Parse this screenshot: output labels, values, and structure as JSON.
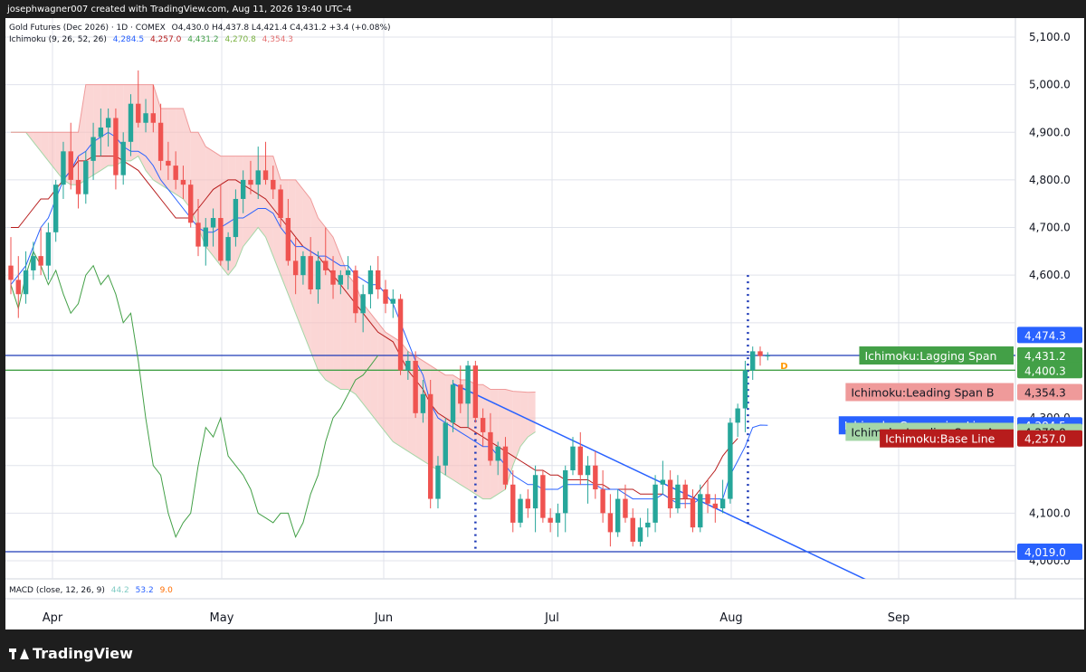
{
  "header": {
    "created_by": "josephwagner007 created with TradingView.com, Aug 11, 2026 19:40 UTC-4"
  },
  "legend": {
    "symbol": "Gold Futures (Dec 2026) · 1D · COMEX",
    "ohlc": "O4,430.0  H4,437.8  L4,421.4  C4,431.2  +3.4 (+0.08%)",
    "ichimoku_name": "Ichimoku (9, 26, 52, 26)",
    "ichimoku_values": [
      "4,284.5",
      "4,257.0",
      "4,431.2",
      "4,270.8",
      "4,354.3"
    ],
    "ichimoku_colors": [
      "#2962ff",
      "#b71c1c",
      "#43a047",
      "#a5d6a7",
      "#ef9a9a"
    ],
    "macd_name": "MACD (close, 12, 26, 9)",
    "macd_values": [
      "44.2",
      "53.2",
      "9.0"
    ],
    "macd_colors": [
      "#80cbc4",
      "#2962ff",
      "#ff6d00"
    ]
  },
  "price_axis": {
    "ticks": [
      "5,100.0",
      "5,000.0",
      "4,900.0",
      "4,800.0",
      "4,700.0",
      "4,600.0",
      "4,300.0",
      "4,100.0",
      "4,000.0"
    ]
  },
  "time_axis": {
    "ticks": [
      "Apr",
      "May",
      "Jun",
      "Jul",
      "Aug",
      "Sep"
    ]
  },
  "price_labels": [
    {
      "text": "4,474.3",
      "value": 4474.3,
      "bg": "#2962ff",
      "fg": "#ffffff"
    },
    {
      "text": "4,431.2",
      "value": 4431.2,
      "bg": "#43a047",
      "fg": "#ffffff",
      "name": "Ichimoku:Lagging Span",
      "namebg": "#43a047",
      "namefg": "#ffffff",
      "offset": -10
    },
    {
      "text": "4,431.2",
      "value": 4431.2,
      "bg": "#43a047",
      "fg": "#ffffff",
      "offset": 10
    },
    {
      "text": "4,400.3",
      "value": 4400.3,
      "bg": "#43a047",
      "fg": "#ffffff"
    },
    {
      "text": "4,354.3",
      "value": 4354.3,
      "bg": "#ef9a9a",
      "fg": "#131722",
      "name": "Ichimoku:Leading Span B",
      "namebg": "#ef9a9a",
      "namefg": "#131722"
    },
    {
      "text": "4,284.5",
      "value": 4284.5,
      "bg": "#2962ff",
      "fg": "#ffffff",
      "name": "Ichimoku:Conversion Line",
      "namebg": "#2962ff",
      "namefg": "#ffffff"
    },
    {
      "text": "4,270.8",
      "value": 4270.8,
      "bg": "#a5d6a7",
      "fg": "#131722",
      "name": "Ichimoku:Leading Span A",
      "namebg": "#a5d6a7",
      "namefg": "#131722",
      "offset": 6
    },
    {
      "text": "4,257.0",
      "value": 4257.0,
      "bg": "#b71c1c",
      "fg": "#ffffff",
      "name": "Ichimoku:Base Line",
      "namebg": "#b71c1c",
      "namefg": "#ffffff",
      "offset": 10
    },
    {
      "text": "4,019.0",
      "value": 4019.0,
      "bg": "#2962ff",
      "fg": "#ffffff"
    }
  ],
  "marker_label": "D",
  "footer": {
    "brand": "TradingView"
  },
  "chart_data": {
    "type": "candlestick",
    "title": "Gold Futures (Dec 2026) · 1D · COMEX",
    "ylim": [
      3980,
      5130
    ],
    "colors": {
      "up": "#26a69a",
      "down": "#ef5350",
      "kumo_bear": "#f8bbb9",
      "kumo_bull": "#c8e6c9"
    },
    "horizontal_lines": [
      {
        "value": 4431.2,
        "color": "#1e3ab8"
      },
      {
        "value": 4400.3,
        "color": "#43a047"
      },
      {
        "value": 4019.0,
        "color": "#1e3ab8"
      }
    ],
    "candles": [
      [
        4620,
        4680,
        4560,
        4590
      ],
      [
        4590,
        4640,
        4510,
        4560
      ],
      [
        4560,
        4650,
        4540,
        4610
      ],
      [
        4610,
        4670,
        4590,
        4640
      ],
      [
        4640,
        4700,
        4600,
        4620
      ],
      [
        4620,
        4710,
        4590,
        4690
      ],
      [
        4690,
        4800,
        4670,
        4790
      ],
      [
        4790,
        4880,
        4760,
        4860
      ],
      [
        4860,
        4920,
        4780,
        4800
      ],
      [
        4800,
        4850,
        4740,
        4770
      ],
      [
        4770,
        4860,
        4750,
        4840
      ],
      [
        4840,
        4920,
        4800,
        4890
      ],
      [
        4890,
        4950,
        4850,
        4910
      ],
      [
        4910,
        4950,
        4870,
        4930
      ],
      [
        4930,
        4950,
        4780,
        4810
      ],
      [
        4810,
        4900,
        4790,
        4880
      ],
      [
        4880,
        4980,
        4850,
        4960
      ],
      [
        4960,
        5030,
        4910,
        4920
      ],
      [
        4920,
        4970,
        4900,
        4940
      ],
      [
        4940,
        5000,
        4900,
        4920
      ],
      [
        4920,
        4960,
        4820,
        4840
      ],
      [
        4840,
        4880,
        4800,
        4830
      ],
      [
        4830,
        4860,
        4780,
        4800
      ],
      [
        4800,
        4830,
        4760,
        4790
      ],
      [
        4790,
        4800,
        4700,
        4710
      ],
      [
        4710,
        4760,
        4640,
        4660
      ],
      [
        4660,
        4720,
        4620,
        4700
      ],
      [
        4700,
        4740,
        4660,
        4720
      ],
      [
        4720,
        4790,
        4620,
        4630
      ],
      [
        4630,
        4690,
        4610,
        4680
      ],
      [
        4680,
        4780,
        4660,
        4760
      ],
      [
        4760,
        4820,
        4730,
        4800
      ],
      [
        4800,
        4840,
        4770,
        4790
      ],
      [
        4790,
        4870,
        4760,
        4820
      ],
      [
        4820,
        4880,
        4790,
        4800
      ],
      [
        4800,
        4830,
        4760,
        4780
      ],
      [
        4780,
        4790,
        4700,
        4720
      ],
      [
        4720,
        4760,
        4620,
        4630
      ],
      [
        4630,
        4680,
        4560,
        4600
      ],
      [
        4600,
        4650,
        4580,
        4640
      ],
      [
        4640,
        4680,
        4560,
        4570
      ],
      [
        4570,
        4650,
        4540,
        4630
      ],
      [
        4630,
        4700,
        4600,
        4610
      ],
      [
        4610,
        4640,
        4550,
        4580
      ],
      [
        4580,
        4610,
        4560,
        4600
      ],
      [
        4600,
        4640,
        4570,
        4610
      ],
      [
        4610,
        4620,
        4500,
        4520
      ],
      [
        4520,
        4580,
        4480,
        4560
      ],
      [
        4560,
        4620,
        4530,
        4610
      ],
      [
        4610,
        4640,
        4550,
        4570
      ],
      [
        4570,
        4590,
        4520,
        4540
      ],
      [
        4540,
        4570,
        4510,
        4550
      ],
      [
        4550,
        4560,
        4390,
        4400
      ],
      [
        4400,
        4440,
        4380,
        4420
      ],
      [
        4420,
        4440,
        4300,
        4310
      ],
      [
        4310,
        4380,
        4290,
        4350
      ],
      [
        4350,
        4380,
        4110,
        4130
      ],
      [
        4130,
        4220,
        4110,
        4200
      ],
      [
        4200,
        4300,
        4180,
        4290
      ],
      [
        4290,
        4380,
        4270,
        4370
      ],
      [
        4370,
        4410,
        4310,
        4330
      ],
      [
        4330,
        4420,
        4280,
        4410
      ],
      [
        4410,
        4420,
        4290,
        4300
      ],
      [
        4300,
        4320,
        4240,
        4270
      ],
      [
        4270,
        4310,
        4200,
        4210
      ],
      [
        4210,
        4250,
        4180,
        4240
      ],
      [
        4240,
        4260,
        4150,
        4160
      ],
      [
        4160,
        4190,
        4060,
        4080
      ],
      [
        4080,
        4140,
        4070,
        4130
      ],
      [
        4130,
        4150,
        4090,
        4110
      ],
      [
        4110,
        4200,
        4060,
        4180
      ],
      [
        4180,
        4190,
        4080,
        4090
      ],
      [
        4090,
        4110,
        4060,
        4080
      ],
      [
        4080,
        4120,
        4050,
        4100
      ],
      [
        4100,
        4200,
        4060,
        4190
      ],
      [
        4190,
        4260,
        4180,
        4240
      ],
      [
        4240,
        4270,
        4160,
        4180
      ],
      [
        4180,
        4220,
        4120,
        4200
      ],
      [
        4200,
        4230,
        4130,
        4150
      ],
      [
        4150,
        4190,
        4080,
        4100
      ],
      [
        4100,
        4140,
        4030,
        4060
      ],
      [
        4060,
        4150,
        4050,
        4130
      ],
      [
        4130,
        4160,
        4080,
        4090
      ],
      [
        4090,
        4110,
        4030,
        4040
      ],
      [
        4040,
        4090,
        4030,
        4070
      ],
      [
        4070,
        4110,
        4050,
        4080
      ],
      [
        4080,
        4180,
        4060,
        4160
      ],
      [
        4160,
        4210,
        4140,
        4170
      ],
      [
        4170,
        4190,
        4090,
        4110
      ],
      [
        4110,
        4180,
        4100,
        4160
      ],
      [
        4160,
        4170,
        4110,
        4130
      ],
      [
        4130,
        4150,
        4060,
        4070
      ],
      [
        4070,
        4160,
        4060,
        4140
      ],
      [
        4140,
        4170,
        4100,
        4120
      ],
      [
        4120,
        4140,
        4080,
        4110
      ],
      [
        4110,
        4170,
        4100,
        4130
      ],
      [
        4130,
        4300,
        4120,
        4290
      ],
      [
        4290,
        4330,
        4260,
        4320
      ],
      [
        4320,
        4420,
        4270,
        4400
      ],
      [
        4400,
        4450,
        4380,
        4440
      ],
      [
        4440,
        4450,
        4410,
        4430
      ],
      [
        4430,
        4438,
        4421,
        4431
      ]
    ],
    "tenkan": [
      4580,
      4600,
      4620,
      4660,
      4700,
      4720,
      4760,
      4800,
      4820,
      4850,
      4860,
      4880,
      4890,
      4900,
      4890,
      4870,
      4860,
      4860,
      4850,
      4830,
      4800,
      4780,
      4760,
      4740,
      4720,
      4700,
      4690,
      4690,
      4700,
      4710,
      4720,
      4720,
      4730,
      4740,
      4740,
      4730,
      4700,
      4680,
      4660,
      4660,
      4650,
      4640,
      4640,
      4630,
      4620,
      4620,
      4600,
      4590,
      4580,
      4580,
      4560,
      4540,
      4500,
      4460,
      4420,
      4390,
      4330,
      4300,
      4290,
      4280,
      4270,
      4260,
      4250,
      4240,
      4240,
      4220,
      4200,
      4180,
      4170,
      4160,
      4160,
      4150,
      4150,
      4150,
      4160,
      4160,
      4160,
      4160,
      4160,
      4150,
      4150,
      4150,
      4140,
      4130,
      4130,
      4130,
      4130,
      4140,
      4130,
      4120,
      4120,
      4120,
      4130,
      4130,
      4130,
      4130,
      4180,
      4210,
      4240,
      4280,
      4285,
      4284.5
    ],
    "kijun": [
      4700,
      4700,
      4720,
      4740,
      4760,
      4760,
      4780,
      4800,
      4820,
      4840,
      4840,
      4850,
      4850,
      4850,
      4850,
      4840,
      4830,
      4820,
      4800,
      4780,
      4760,
      4740,
      4720,
      4720,
      4720,
      4740,
      4760,
      4780,
      4790,
      4800,
      4800,
      4790,
      4780,
      4770,
      4760,
      4740,
      4720,
      4700,
      4680,
      4660,
      4650,
      4640,
      4620,
      4600,
      4580,
      4560,
      4540,
      4520,
      4500,
      4480,
      4470,
      4460,
      4430,
      4400,
      4380,
      4360,
      4330,
      4310,
      4300,
      4290,
      4280,
      4280,
      4270,
      4260,
      4250,
      4240,
      4230,
      4220,
      4210,
      4200,
      4190,
      4190,
      4180,
      4180,
      4170,
      4170,
      4170,
      4170,
      4160,
      4160,
      4150,
      4150,
      4150,
      4150,
      4140,
      4140,
      4140,
      4140,
      4130,
      4130,
      4130,
      4130,
      4150,
      4170,
      4190,
      4220,
      4240,
      4257
    ],
    "chikou": [
      4580,
      4530,
      4600,
      4650,
      4620,
      4580,
      4610,
      4560,
      4520,
      4540,
      4600,
      4620,
      4580,
      4600,
      4560,
      4500,
      4520,
      4420,
      4300,
      4200,
      4180,
      4100,
      4050,
      4080,
      4100,
      4200,
      4280,
      4260,
      4300,
      4220,
      4200,
      4180,
      4150,
      4100,
      4090,
      4080,
      4100,
      4100,
      4050,
      4080,
      4140,
      4180,
      4250,
      4300,
      4320,
      4350,
      4380,
      4390,
      4410,
      4431.2
    ],
    "senkou_a": [
      4900,
      4900,
      4900,
      4880,
      4860,
      4840,
      4820,
      4800,
      4790,
      4790,
      4800,
      4810,
      4820,
      4830,
      4830,
      4840,
      4840,
      4850,
      4820,
      4800,
      4790,
      4780,
      4770,
      4760,
      4740,
      4700,
      4660,
      4640,
      4620,
      4600,
      4620,
      4660,
      4680,
      4700,
      4680,
      4640,
      4600,
      4560,
      4520,
      4480,
      4440,
      4400,
      4380,
      4370,
      4360,
      4360,
      4350,
      4330,
      4310,
      4290,
      4270,
      4250,
      4240,
      4230,
      4220,
      4210,
      4200,
      4190,
      4180,
      4170,
      4160,
      4150,
      4140,
      4130,
      4130,
      4140,
      4150,
      4200,
      4240,
      4260,
      4270.8
    ],
    "senkou_b": [
      4900,
      4900,
      4900,
      4900,
      4900,
      4900,
      4900,
      4900,
      4900,
      4900,
      5000,
      5000,
      5000,
      5000,
      5000,
      5000,
      5000,
      5000,
      5000,
      5000,
      4950,
      4950,
      4950,
      4950,
      4900,
      4900,
      4870,
      4860,
      4850,
      4850,
      4850,
      4850,
      4850,
      4850,
      4850,
      4850,
      4800,
      4800,
      4800,
      4780,
      4760,
      4720,
      4700,
      4680,
      4640,
      4600,
      4580,
      4540,
      4520,
      4500,
      4480,
      4470,
      4460,
      4440,
      4430,
      4420,
      4410,
      4400,
      4390,
      4390,
      4380,
      4380,
      4370,
      4370,
      4360,
      4360,
      4360,
      4356,
      4355,
      4354,
      4354.3
    ]
  }
}
